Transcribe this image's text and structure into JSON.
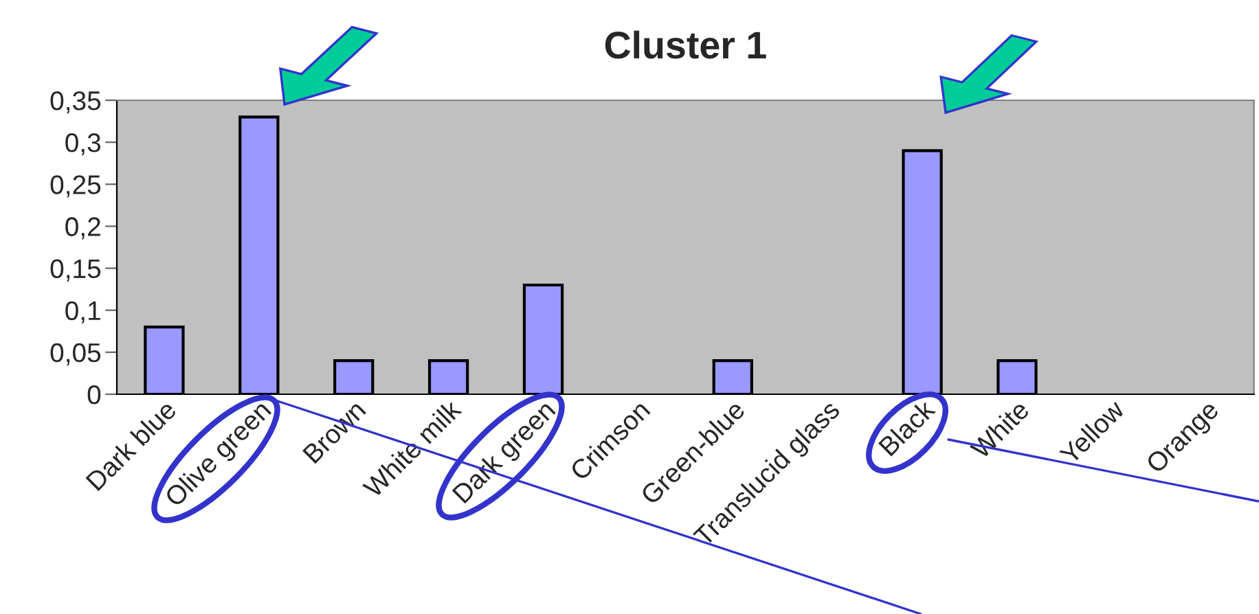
{
  "chart_data": {
    "type": "bar",
    "title": "Cluster 1",
    "categories": [
      "Dark blue",
      "Olive green",
      "Brown",
      "White milk",
      "Dark green",
      "Crimson",
      "Green-blue",
      "Translucid glass",
      "Black",
      "White",
      "Yellow",
      "Orange"
    ],
    "values": [
      0.08,
      0.33,
      0.04,
      0.04,
      0.13,
      0,
      0.04,
      0,
      0.29,
      0.04,
      0,
      0
    ],
    "color": "#9999ff",
    "ylim": [
      0,
      0.35
    ],
    "yticks": [
      0,
      {
        "value": 0.05,
        "label": "0,05"
      },
      {
        "value": 0.1,
        "label": "0,1"
      },
      {
        "value": 0.15,
        "label": "0,15"
      },
      {
        "value": 0.2,
        "label": "0,2"
      },
      {
        "value": 0.25,
        "label": "0,25"
      },
      {
        "value": 0.3,
        "label": "0,3"
      },
      {
        "value": 0.35,
        "label": "0,35"
      }
    ],
    "grid": false
  }
}
